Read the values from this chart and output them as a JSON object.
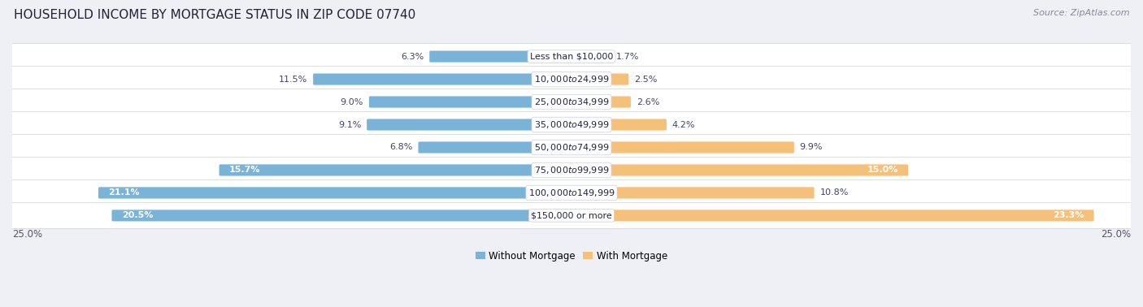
{
  "title": "HOUSEHOLD INCOME BY MORTGAGE STATUS IN ZIP CODE 07740",
  "source": "Source: ZipAtlas.com",
  "categories": [
    "Less than $10,000",
    "$10,000 to $24,999",
    "$25,000 to $34,999",
    "$35,000 to $49,999",
    "$50,000 to $74,999",
    "$75,000 to $99,999",
    "$100,000 to $149,999",
    "$150,000 or more"
  ],
  "without_mortgage": [
    6.3,
    11.5,
    9.0,
    9.1,
    6.8,
    15.7,
    21.1,
    20.5
  ],
  "with_mortgage": [
    1.7,
    2.5,
    2.6,
    4.2,
    9.9,
    15.0,
    10.8,
    23.3
  ],
  "color_without": "#7ab3d8",
  "color_with": "#f5c07a",
  "bg_color": "#eef0f5",
  "row_bg_even": "#e8eaef",
  "row_bg_odd": "#f2f3f7",
  "xlim": 25.0,
  "legend_labels": [
    "Without Mortgage",
    "With Mortgage"
  ],
  "title_fontsize": 11,
  "source_fontsize": 8,
  "label_fontsize": 8.5,
  "bar_label_fontsize": 8,
  "cat_label_fontsize": 8
}
